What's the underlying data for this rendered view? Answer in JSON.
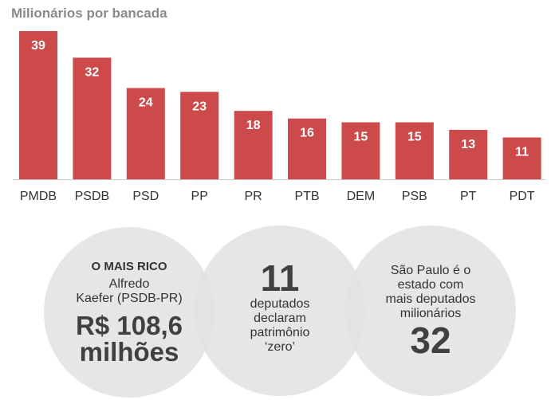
{
  "chart_data": {
    "type": "bar",
    "title": "Milionários por bancada",
    "categories": [
      "PMDB",
      "PSDB",
      "PSD",
      "PP",
      "PR",
      "PTB",
      "DEM",
      "PSB",
      "PT",
      "PDT"
    ],
    "values": [
      39,
      32,
      24,
      23,
      18,
      16,
      15,
      15,
      13,
      11
    ],
    "xlabel": "",
    "ylabel": "",
    "ylim": [
      0,
      39
    ],
    "grid": false,
    "bar_color": "#cc4a4a",
    "label_color": "#ffffff"
  },
  "stats": {
    "richest": {
      "heading": "O MAIS RICO",
      "name_line1": "Alfredo",
      "name_line2": "Kaefer (PSDB-PR)",
      "value_line1": "R$ 108,6",
      "value_line2": "milhões"
    },
    "zero": {
      "number": "11",
      "line1": "deputados",
      "line2": "declaram",
      "line3": "patrimônio",
      "line4": "‘zero’"
    },
    "state": {
      "line1": "São Paulo é o",
      "line2": "estado com",
      "line3": "mais deputados",
      "line4": "milionários",
      "number": "32"
    }
  }
}
